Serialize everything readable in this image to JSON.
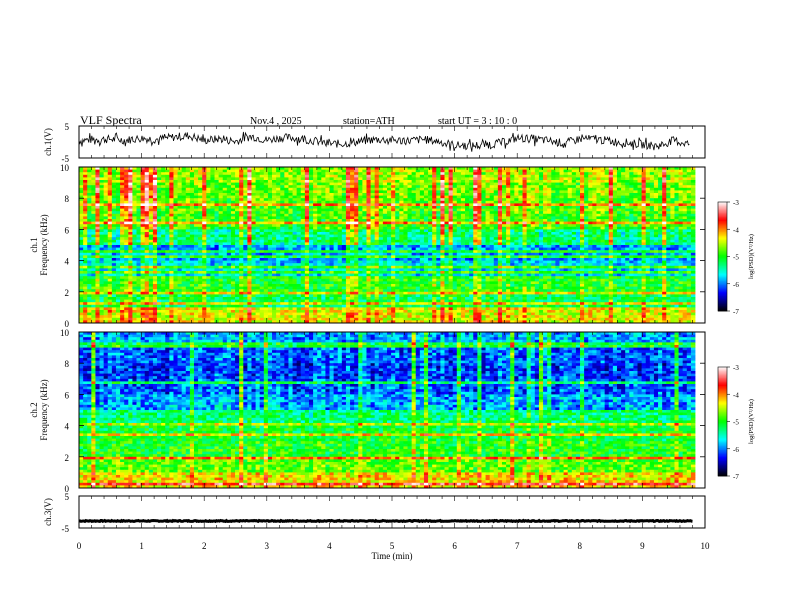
{
  "header": {
    "title": "VLF Spectra",
    "date": "Nov.4 , 2025",
    "station": "station=ATH",
    "start": "start UT = 3 : 10 : 0"
  },
  "colorbar": {
    "label": "log(PSD)(V²/Hz)",
    "ticks": [
      "-3",
      "-4",
      "-5",
      "-6",
      "-7"
    ],
    "colors": [
      "#ffffff",
      "#ff0000",
      "#ffff00",
      "#00ff00",
      "#00ffff",
      "#0000ff",
      "#000000"
    ]
  },
  "chart_data": [
    {
      "type": "line",
      "name": "ch1-waveform",
      "ylabel": "ch.1(V)",
      "ytick_labels": [
        "5",
        "-5"
      ],
      "ylim": [
        -5,
        5
      ],
      "xlim": [
        0,
        10
      ],
      "x": [
        0,
        0.25,
        0.5,
        0.75,
        1,
        1.25,
        1.5,
        1.75,
        2,
        2.25,
        2.5,
        2.75,
        3,
        3.25,
        3.5,
        3.75,
        4,
        4.25,
        4.5,
        4.75,
        5,
        5.25,
        5.5,
        5.75,
        6,
        6.25,
        6.5,
        6.75,
        7,
        7.25,
        7.5,
        7.75,
        8,
        8.25,
        8.5,
        8.75,
        9,
        9.25,
        9.5,
        9.75
      ],
      "values": [
        0.5,
        0.8,
        0.9,
        0.6,
        1.2,
        0.8,
        1.5,
        2.0,
        0.5,
        1.0,
        0.2,
        1.8,
        0.6,
        1.4,
        1.2,
        0.4,
        -0.6,
        -0.5,
        0.2,
        0.8,
        0.6,
        0.4,
        0.8,
        0.2,
        -1.0,
        -1.2,
        -0.8,
        -0.2,
        1.2,
        1.0,
        0.4,
        -0.4,
        1.0,
        0.9,
        0.2,
        -0.2,
        -0.8,
        -1.2,
        0.5,
        -0.6
      ]
    },
    {
      "type": "heatmap",
      "name": "ch1-spectrogram",
      "ylabel": "Frequency (kHz)",
      "channel_label": "ch.1",
      "ytick_labels": [
        "10",
        "8",
        "6",
        "4",
        "2",
        "0"
      ],
      "ylim": [
        0,
        10
      ],
      "xlim": [
        0,
        10
      ],
      "z_label": "log(PSD)(V²/Hz)",
      "zlim": [
        -7,
        -3
      ],
      "band_freq_khz": [
        0.5,
        1.5,
        2.5,
        3.5,
        4.5,
        5.5,
        6.5,
        7.5,
        8.5,
        9.5
      ],
      "band_level": [
        -4.4,
        -5.2,
        -5.0,
        -5.7,
        -5.9,
        -5.3,
        -4.9,
        -4.8,
        -4.7,
        -4.6
      ]
    },
    {
      "type": "heatmap",
      "name": "ch2-spectrogram",
      "ylabel": "Frequency (kHz)",
      "channel_label": "ch.2",
      "ytick_labels": [
        "10",
        "8",
        "6",
        "4",
        "2",
        "0"
      ],
      "ylim": [
        0,
        10
      ],
      "xlim": [
        0,
        10
      ],
      "z_label": "log(PSD)(V²/Hz)",
      "zlim": [
        -7,
        -3
      ],
      "band_freq_khz": [
        0.5,
        1.5,
        2.5,
        3.5,
        4.5,
        5.5,
        6.5,
        7.5,
        8.5,
        9.5
      ],
      "band_level": [
        -4.3,
        -4.8,
        -5.0,
        -5.1,
        -5.3,
        -5.9,
        -6.1,
        -6.2,
        -6.1,
        -5.9
      ]
    },
    {
      "type": "line",
      "name": "ch3-waveform",
      "ylabel": "ch.3(V)",
      "ytick_labels": [
        "5",
        "-5"
      ],
      "ylim": [
        -5,
        5
      ],
      "xlim": [
        0,
        10
      ],
      "x": [
        0,
        9.8
      ],
      "values": [
        -2.8,
        -2.8
      ]
    }
  ],
  "xaxis": {
    "label": "Time (min)",
    "ticks": [
      "0",
      "1",
      "2",
      "3",
      "4",
      "5",
      "6",
      "7",
      "8",
      "9",
      "10"
    ]
  }
}
